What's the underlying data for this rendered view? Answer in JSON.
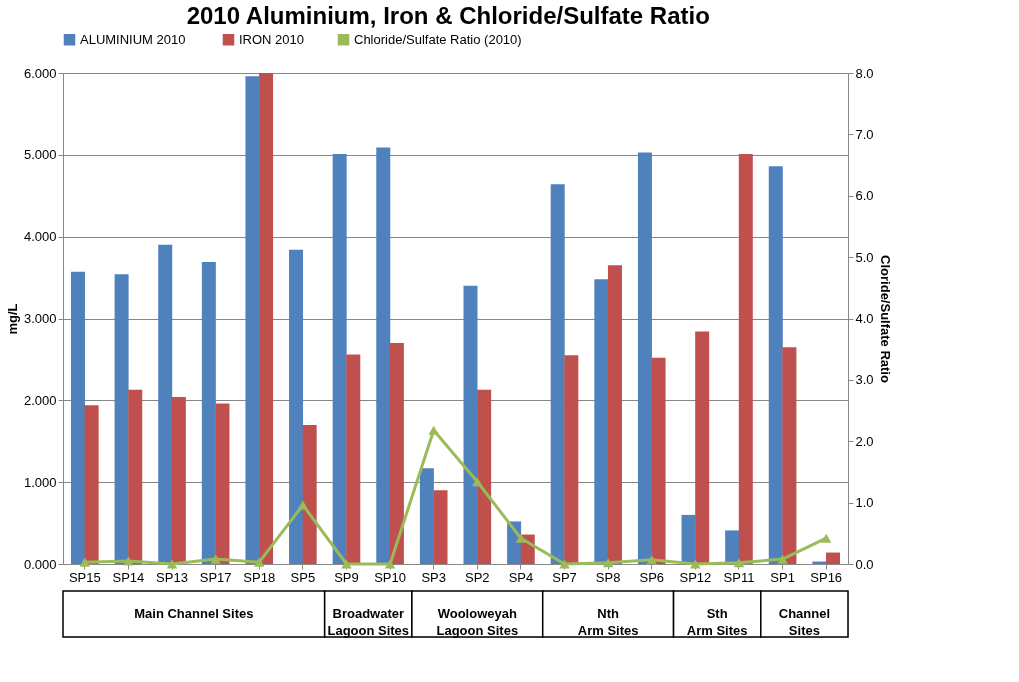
{
  "chart_data": {
    "type": "bar",
    "title": "2010 Aluminium, Iron & Chloride/Sulfate Ratio",
    "ylabel": "mg/L",
    "y2label": "Cloride/Sulfate Ratio",
    "categories": [
      "SP15",
      "SP14",
      "SP13",
      "SP17",
      "SP18",
      "SP5",
      "SP9",
      "SP10",
      "SP3",
      "SP2",
      "SP4",
      "SP7",
      "SP8",
      "SP6",
      "SP12",
      "SP11",
      "SP1",
      "SP16"
    ],
    "series": [
      {
        "name": "ALUMINIUM  2010",
        "color": "#4f81bd",
        "values": [
          3.57,
          3.54,
          3.9,
          3.69,
          5.96,
          3.84,
          5.01,
          5.09,
          1.17,
          3.4,
          0.52,
          4.64,
          3.48,
          5.03,
          0.6,
          0.41,
          4.86,
          0.03
        ]
      },
      {
        "name": "IRON 2010",
        "color": "#c0504d",
        "values": [
          1.94,
          2.13,
          2.04,
          1.96,
          6.0,
          1.7,
          2.56,
          2.7,
          0.9,
          2.13,
          0.36,
          2.55,
          3.65,
          2.52,
          2.84,
          5.01,
          2.65,
          0.14
        ]
      },
      {
        "name": "Chloride/Sulfate Ratio  (2010)",
        "color": "#9bbb59",
        "type": "line",
        "axis": "y2",
        "marker": "triangle",
        "values": [
          0.03,
          0.05,
          0.0,
          0.08,
          0.03,
          0.96,
          0.0,
          0.0,
          2.18,
          1.34,
          0.42,
          0.0,
          0.02,
          0.07,
          0.0,
          0.02,
          0.08,
          0.42
        ]
      }
    ],
    "ylim": [
      0,
      6
    ],
    "yticks": [
      {
        "value": 0,
        "label": "0.000"
      },
      {
        "value": 1,
        "label": "1.000"
      },
      {
        "value": 2,
        "label": "2.000"
      },
      {
        "value": 3,
        "label": "3.000"
      },
      {
        "value": 4,
        "label": "4.000"
      },
      {
        "value": 5,
        "label": "5.000"
      },
      {
        "value": 6,
        "label": "6.000"
      }
    ],
    "y2lim": [
      0,
      8
    ],
    "y2ticks": [
      {
        "value": 0,
        "label": "0.0"
      },
      {
        "value": 1,
        "label": "1.0"
      },
      {
        "value": 2,
        "label": "2.0"
      },
      {
        "value": 3,
        "label": "3.0"
      },
      {
        "value": 4,
        "label": "4.0"
      },
      {
        "value": 5,
        "label": "5.0"
      },
      {
        "value": 6,
        "label": "6.0"
      },
      {
        "value": 7,
        "label": "7.0"
      },
      {
        "value": 8,
        "label": "8.0"
      }
    ],
    "grid": "y",
    "legend": "top",
    "annotations": [
      "Main Channel  Sites",
      "Broadwater Lagoon Sites",
      "Wooloweyah Lagoon Sites",
      "Nth Arm Sites",
      "Sth Arm Sites",
      "Channel Sites"
    ]
  }
}
